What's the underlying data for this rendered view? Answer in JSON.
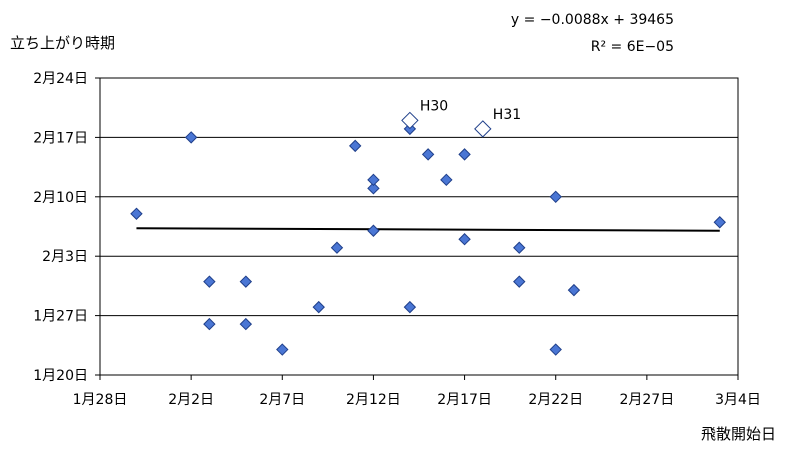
{
  "chart_data": {
    "type": "scatter",
    "title": "",
    "ylabel": "立ち上がり時期",
    "xlabel": "飛散開始日",
    "x_ticks": [
      "1月28日",
      "2月2日",
      "2月7日",
      "2月12日",
      "2月17日",
      "2月22日",
      "2月27日",
      "3月4日"
    ],
    "y_ticks": [
      "1月20日",
      "1月27日",
      "2月3日",
      "2月10日",
      "2月17日",
      "2月24日"
    ],
    "x_axis": {
      "min_day": 28,
      "max_day": 63,
      "tick_step": 5,
      "note": "days counted from Jan 1 (Jan 28 = 28)"
    },
    "y_axis": {
      "min_day": 20,
      "max_day": 55,
      "tick_step": 7
    },
    "grid": "horizontal",
    "points": [
      {
        "x": 30,
        "y": 39
      },
      {
        "x": 33,
        "y": 48
      },
      {
        "x": 34,
        "y": 31
      },
      {
        "x": 34,
        "y": 26
      },
      {
        "x": 36,
        "y": 31
      },
      {
        "x": 38,
        "y": 23
      },
      {
        "x": 41,
        "y": 35
      },
      {
        "x": 42,
        "y": 47
      },
      {
        "x": 43,
        "y": 42
      },
      {
        "x": 43,
        "y": 43
      },
      {
        "x": 43,
        "y": 37
      },
      {
        "x": 45,
        "y": 28
      },
      {
        "x": 45,
        "y": 49
      },
      {
        "x": 46,
        "y": 46
      },
      {
        "x": 47,
        "y": 43
      },
      {
        "x": 48,
        "y": 46
      },
      {
        "x": 48,
        "y": 36
      },
      {
        "x": 51,
        "y": 35
      },
      {
        "x": 51,
        "y": 31
      },
      {
        "x": 53,
        "y": 41
      },
      {
        "x": 53,
        "y": 23
      },
      {
        "x": 54,
        "y": 30
      },
      {
        "x": 62,
        "y": 38
      },
      {
        "x": 40,
        "y": 28
      },
      {
        "x": 36,
        "y": 26
      }
    ],
    "highlight_points": [
      {
        "label": "H30",
        "x": 45,
        "y": 50
      },
      {
        "label": "H31",
        "x": 49,
        "y": 49
      }
    ],
    "trendline": {
      "equation": "y = −0.0088x + 39465",
      "r2": "R² = 6E−05",
      "x_start": 30,
      "x_end": 62,
      "y_start": 37.3,
      "y_end": 37.0
    }
  }
}
